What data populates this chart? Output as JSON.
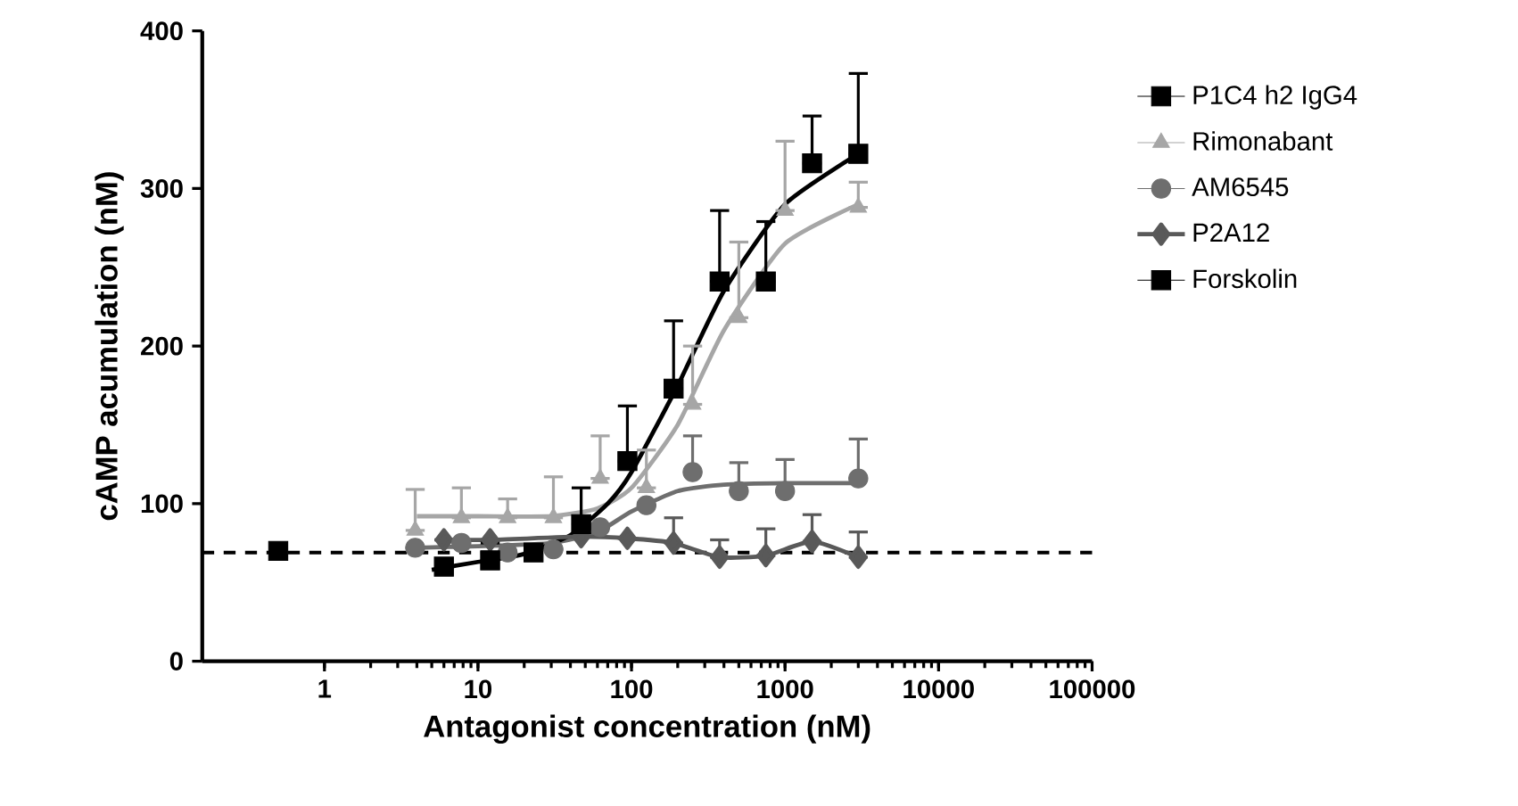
{
  "chart_data": {
    "type": "scatter",
    "xlabel": "Antagonist concentration (nM)",
    "ylabel": "cAMP acumulation (nM)",
    "log": "x",
    "xlim": [
      0.16,
      100000
    ],
    "xticks": [
      1,
      10,
      100,
      1000,
      10000,
      100000
    ],
    "ylim": [
      0,
      400
    ],
    "yticks": [
      0,
      100,
      200,
      300,
      400
    ],
    "grid": false,
    "legend": "right",
    "ref_lines": [
      {
        "axis": "y",
        "value": 69,
        "line_style": "dashed",
        "color": "#000000"
      }
    ],
    "series": [
      {
        "name": "P1C4 h2 IgG4",
        "marker": "square",
        "color": "#000000",
        "x": [
          6,
          12,
          23,
          47,
          94,
          188,
          375,
          750,
          1500,
          3000
        ],
        "values": [
          60,
          64,
          69,
          87,
          127,
          173,
          241,
          241,
          316,
          322
        ],
        "errors": [
          null,
          [
            64,
            75
          ],
          null,
          [
            87,
            110
          ],
          [
            127,
            162
          ],
          [
            173,
            216
          ],
          [
            241,
            286
          ],
          [
            241,
            279
          ],
          [
            316,
            346
          ],
          [
            322,
            373
          ]
        ]
      },
      {
        "name": "Rimonabant",
        "marker": "triangle",
        "color": "#a6a6a6",
        "x": [
          3.9,
          7.8,
          15.6,
          31,
          62.5,
          125,
          250,
          500,
          1000,
          3000
        ],
        "values": [
          83,
          91,
          91,
          91,
          116,
          110,
          163,
          218,
          286,
          288
        ],
        "errors": [
          [
            83,
            109
          ],
          [
            91,
            110
          ],
          [
            91,
            103
          ],
          [
            91,
            117
          ],
          [
            116,
            143
          ],
          [
            110,
            134
          ],
          [
            163,
            200
          ],
          [
            218,
            266
          ],
          [
            286,
            330
          ],
          [
            288,
            304
          ]
        ]
      },
      {
        "name": "AM6545",
        "marker": "circle",
        "color": "#6e6e6e",
        "x": [
          3.9,
          7.8,
          15.6,
          31,
          62.5,
          125,
          250,
          500,
          1000,
          3000
        ],
        "values": [
          72,
          75,
          69,
          71,
          85,
          99,
          120,
          108,
          108,
          116
        ],
        "errors": [
          null,
          null,
          null,
          null,
          null,
          null,
          [
            120,
            143
          ],
          [
            108,
            126
          ],
          [
            108,
            128
          ],
          [
            116,
            141
          ]
        ]
      },
      {
        "name": "P2A12",
        "type": "line",
        "marker": "diamond",
        "color": "#595959",
        "x": [
          6,
          12,
          23,
          47,
          94,
          188,
          375,
          750,
          1500,
          3000
        ],
        "values": [
          77,
          77,
          null,
          79,
          78,
          75,
          66,
          67,
          76,
          66
        ],
        "errors": [
          null,
          null,
          null,
          null,
          null,
          [
            75,
            91
          ],
          [
            66,
            77
          ],
          [
            67,
            84
          ],
          [
            76,
            93
          ],
          [
            66,
            82
          ]
        ]
      },
      {
        "name": "Forskolin",
        "marker": "square",
        "color": "#000000",
        "x": [
          0.5
        ],
        "values": [
          70
        ]
      },
      {
        "type": "line",
        "marker": "none",
        "color": "#000000",
        "x": [
          5,
          10,
          20,
          40,
          70,
          100,
          200,
          400,
          1000,
          3000
        ],
        "values": [
          58,
          63,
          68,
          80,
          100,
          120,
          175,
          235,
          290,
          322
        ]
      },
      {
        "type": "line",
        "marker": "none",
        "color": "#a6a6a6",
        "x": [
          4,
          10,
          30,
          60,
          100,
          200,
          400,
          1000,
          3000
        ],
        "values": [
          92,
          92,
          92,
          97,
          110,
          150,
          210,
          265,
          290
        ]
      },
      {
        "type": "line",
        "marker": "none",
        "color": "#6e6e6e",
        "x": [
          4,
          10,
          30,
          60,
          100,
          200,
          400,
          1000,
          3000
        ],
        "values": [
          72,
          73,
          75,
          82,
          95,
          108,
          112,
          113,
          113
        ]
      }
    ]
  }
}
